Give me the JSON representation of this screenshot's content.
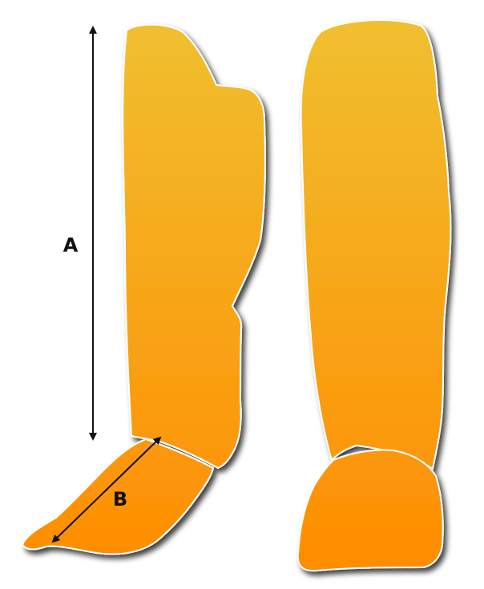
{
  "labels": {
    "dimension_a": "A",
    "dimension_b": "B"
  },
  "colors": {
    "gradient_top": "#F0C030",
    "gradient_bottom": "#FF8C00",
    "outline": "#ffffff",
    "shadow": "#000000",
    "dimension_line": "#111111",
    "label_text": "#111111",
    "background": "#ffffff"
  }
}
